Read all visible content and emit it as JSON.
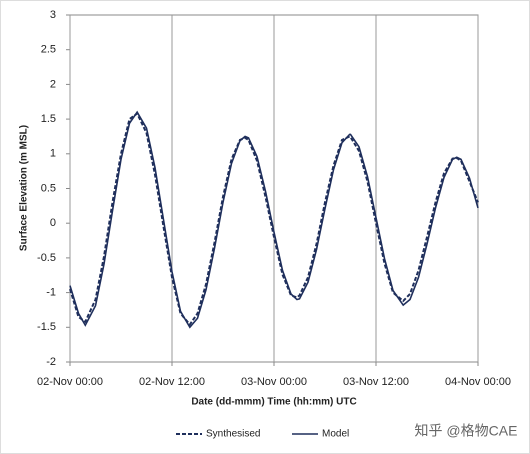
{
  "chart_data": {
    "type": "line",
    "x_label": "Date (dd-mmm) Time (hh:mm) UTC",
    "y_label": "Surface Elevation (m MSL)",
    "x": [
      0,
      1,
      1.8,
      3,
      4,
      5,
      6,
      7,
      7.9,
      9,
      10,
      11,
      12,
      13,
      14.1,
      15,
      16,
      17,
      18,
      19,
      20,
      20.6,
      21,
      22,
      23,
      24,
      25,
      26,
      26.7,
      27,
      28,
      29,
      30,
      31,
      32,
      32.9,
      33,
      34,
      35,
      36,
      37,
      38,
      39.2,
      40,
      41,
      42,
      43,
      44,
      45,
      45.5,
      46,
      47,
      48
    ],
    "series": [
      {
        "name": "Synthesised",
        "color": "#1f2f5c",
        "dash": true,
        "values": [
          -0.95,
          -1.35,
          -1.42,
          -1.1,
          -0.48,
          0.3,
          1.0,
          1.5,
          1.58,
          1.3,
          0.7,
          -0.05,
          -0.78,
          -1.3,
          -1.46,
          -1.3,
          -0.88,
          -0.28,
          0.38,
          0.92,
          1.2,
          1.23,
          1.2,
          0.9,
          0.38,
          -0.2,
          -0.74,
          -1.04,
          -1.07,
          -1.04,
          -0.78,
          -0.3,
          0.3,
          0.83,
          1.2,
          1.25,
          1.24,
          1.04,
          0.6,
          0.0,
          -0.58,
          -1.0,
          -1.12,
          -1.02,
          -0.68,
          -0.2,
          0.3,
          0.72,
          0.93,
          0.94,
          0.9,
          0.6,
          0.3
        ]
      },
      {
        "name": "Model",
        "color": "#1f2f5c",
        "dash": false,
        "values": [
          -0.9,
          -1.3,
          -1.47,
          -1.19,
          -0.59,
          0.18,
          0.92,
          1.44,
          1.6,
          1.37,
          0.8,
          0.05,
          -0.7,
          -1.27,
          -1.5,
          -1.37,
          -0.96,
          -0.36,
          0.3,
          0.86,
          1.19,
          1.25,
          1.23,
          0.96,
          0.46,
          -0.13,
          -0.68,
          -1.02,
          -1.1,
          -1.09,
          -0.85,
          -0.38,
          0.21,
          0.77,
          1.16,
          1.28,
          1.28,
          1.1,
          0.67,
          0.08,
          -0.51,
          -0.97,
          -1.18,
          -1.1,
          -0.78,
          -0.3,
          0.22,
          0.66,
          0.92,
          0.95,
          0.92,
          0.65,
          0.22
        ]
      }
    ],
    "xlim": [
      0,
      48
    ],
    "xticks": [
      {
        "value": 0,
        "label": "02-Nov 00:00"
      },
      {
        "value": 12,
        "label": "02-Nov 12:00"
      },
      {
        "value": 24,
        "label": "03-Nov 00:00"
      },
      {
        "value": 36,
        "label": "03-Nov 12:00"
      },
      {
        "value": 48,
        "label": "04-Nov 00:00"
      }
    ],
    "ylim": [
      -2,
      3
    ],
    "yticks": [
      3,
      2.5,
      2,
      1.5,
      1,
      0.5,
      0,
      -0.5,
      -1,
      -1.5,
      -2
    ],
    "grid": "x",
    "legend": "bottom",
    "watermark": "知乎 @格物CAE"
  }
}
